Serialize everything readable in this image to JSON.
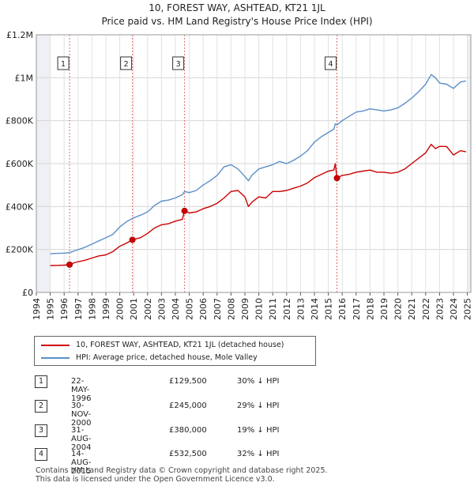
{
  "chart_data": {
    "type": "line",
    "title": "10, FOREST WAY, ASHTEAD, KT21 1JL",
    "subtitle": "Price paid vs. HM Land Registry's House Price Index (HPI)",
    "xlabel": "",
    "ylabel": "",
    "xlim": [
      1994.0,
      2025.0
    ],
    "ylim": [
      0,
      1200000
    ],
    "x_ticks": [
      "1994",
      "1995",
      "1996",
      "1997",
      "1998",
      "1999",
      "2000",
      "2001",
      "2002",
      "2003",
      "2004",
      "2005",
      "2006",
      "2007",
      "2008",
      "2009",
      "2010",
      "2011",
      "2012",
      "2013",
      "2014",
      "2015",
      "2016",
      "2017",
      "2018",
      "2019",
      "2020",
      "2021",
      "2022",
      "2023",
      "2024",
      "2025"
    ],
    "y_ticks": [
      {
        "value": 0,
        "label": "£0"
      },
      {
        "value": 200000,
        "label": "£200K"
      },
      {
        "value": 400000,
        "label": "£400K"
      },
      {
        "value": 600000,
        "label": "£600K"
      },
      {
        "value": 800000,
        "label": "£800K"
      },
      {
        "value": 1000000,
        "label": "£1M"
      },
      {
        "value": 1200000,
        "label": "£1.2M"
      }
    ],
    "grid": true,
    "series": [
      {
        "name": "10, FOREST WAY, ASHTEAD, KT21 1JL (detached house)",
        "color": "#cc0000",
        "x": [
          1995.0,
          1995.5,
          1996.0,
          1996.39,
          1996.8,
          1997.5,
          1998.0,
          1998.5,
          1999.0,
          1999.5,
          2000.0,
          2000.5,
          2000.91,
          2001.5,
          2002.0,
          2002.5,
          2003.0,
          2003.5,
          2004.0,
          2004.5,
          2004.66,
          2005.0,
          2005.5,
          2006.0,
          2006.5,
          2007.0,
          2007.5,
          2008.0,
          2008.5,
          2009.0,
          2009.25,
          2009.5,
          2010.0,
          2010.5,
          2011.0,
          2011.5,
          2012.0,
          2012.5,
          2013.0,
          2013.5,
          2014.0,
          2014.5,
          2015.0,
          2015.4,
          2015.5,
          2015.62,
          2016.0,
          2016.5,
          2017.0,
          2017.5,
          2018.0,
          2018.5,
          2019.0,
          2019.5,
          2020.0,
          2020.5,
          2021.0,
          2021.5,
          2022.0,
          2022.4,
          2022.7,
          2023.0,
          2023.5,
          2024.0,
          2024.5,
          2024.9
        ],
        "values": [
          125000,
          126000,
          127000,
          129500,
          140000,
          150000,
          160000,
          170000,
          175000,
          190000,
          215000,
          230000,
          245000,
          255000,
          275000,
          300000,
          315000,
          320000,
          332000,
          340000,
          380000,
          370000,
          375000,
          390000,
          400000,
          415000,
          440000,
          470000,
          475000,
          445000,
          400000,
          420000,
          445000,
          440000,
          470000,
          470000,
          475000,
          485000,
          495000,
          510000,
          535000,
          550000,
          565000,
          570000,
          600000,
          532500,
          545000,
          550000,
          560000,
          565000,
          570000,
          560000,
          560000,
          555000,
          560000,
          575000,
          600000,
          625000,
          650000,
          690000,
          670000,
          680000,
          680000,
          640000,
          660000,
          655000
        ]
      },
      {
        "name": "HPI: Average price, detached house, Mole Valley",
        "color": "#5b8fc9",
        "x": [
          1995.0,
          1995.5,
          1996.0,
          1996.39,
          1996.8,
          1997.5,
          1998.0,
          1998.5,
          1999.0,
          1999.5,
          2000.0,
          2000.5,
          2000.91,
          2001.5,
          2002.0,
          2002.5,
          2003.0,
          2003.5,
          2004.0,
          2004.5,
          2004.66,
          2005.0,
          2005.5,
          2006.0,
          2006.5,
          2007.0,
          2007.5,
          2008.0,
          2008.5,
          2009.0,
          2009.25,
          2009.5,
          2010.0,
          2010.5,
          2011.0,
          2011.5,
          2012.0,
          2012.5,
          2013.0,
          2013.5,
          2014.0,
          2014.5,
          2015.0,
          2015.4,
          2015.5,
          2015.62,
          2016.0,
          2016.5,
          2017.0,
          2017.5,
          2018.0,
          2018.5,
          2019.0,
          2019.5,
          2020.0,
          2020.5,
          2021.0,
          2021.5,
          2022.0,
          2022.4,
          2022.7,
          2023.0,
          2023.5,
          2024.0,
          2024.5,
          2024.9
        ],
        "values": [
          180000,
          182000,
          183000,
          185000,
          195000,
          210000,
          225000,
          240000,
          255000,
          270000,
          305000,
          330000,
          345000,
          360000,
          375000,
          405000,
          425000,
          430000,
          440000,
          455000,
          470000,
          465000,
          475000,
          500000,
          520000,
          545000,
          585000,
          595000,
          575000,
          540000,
          520000,
          545000,
          575000,
          585000,
          595000,
          610000,
          600000,
          615000,
          635000,
          660000,
          700000,
          725000,
          745000,
          760000,
          785000,
          780000,
          800000,
          820000,
          840000,
          845000,
          855000,
          850000,
          845000,
          850000,
          860000,
          880000,
          905000,
          935000,
          970000,
          1015000,
          1000000,
          975000,
          970000,
          950000,
          980000,
          985000
        ]
      }
    ],
    "sales": [
      {
        "marker": "1",
        "x": 1996.39,
        "price": 129500
      },
      {
        "marker": "2",
        "x": 2000.91,
        "price": 245000
      },
      {
        "marker": "3",
        "x": 2004.66,
        "price": 380000
      },
      {
        "marker": "4",
        "x": 2015.62,
        "price": 532500
      }
    ],
    "shaded_ranges": [
      [
        1994.0,
        1995.0
      ],
      [
        2025.0,
        2025.25
      ]
    ],
    "legend_position": "bottom"
  },
  "legend": {
    "property_label": "10, FOREST WAY, ASHTEAD, KT21 1JL (detached house)",
    "hpi_label": "HPI: Average price, detached house, Mole Valley"
  },
  "sales_table": [
    {
      "num": "1",
      "date": "22-MAY-1996",
      "price": "£129,500",
      "hpi": "30% ↓ HPI"
    },
    {
      "num": "2",
      "date": "30-NOV-2000",
      "price": "£245,000",
      "hpi": "29% ↓ HPI"
    },
    {
      "num": "3",
      "date": "31-AUG-2004",
      "price": "£380,000",
      "hpi": "19% ↓ HPI"
    },
    {
      "num": "4",
      "date": "14-AUG-2015",
      "price": "£532,500",
      "hpi": "32% ↓ HPI"
    }
  ],
  "footer": {
    "line1": "Contains HM Land Registry data © Crown copyright and database right 2025.",
    "line2": "This data is licensed under the Open Government Licence v3.0."
  }
}
